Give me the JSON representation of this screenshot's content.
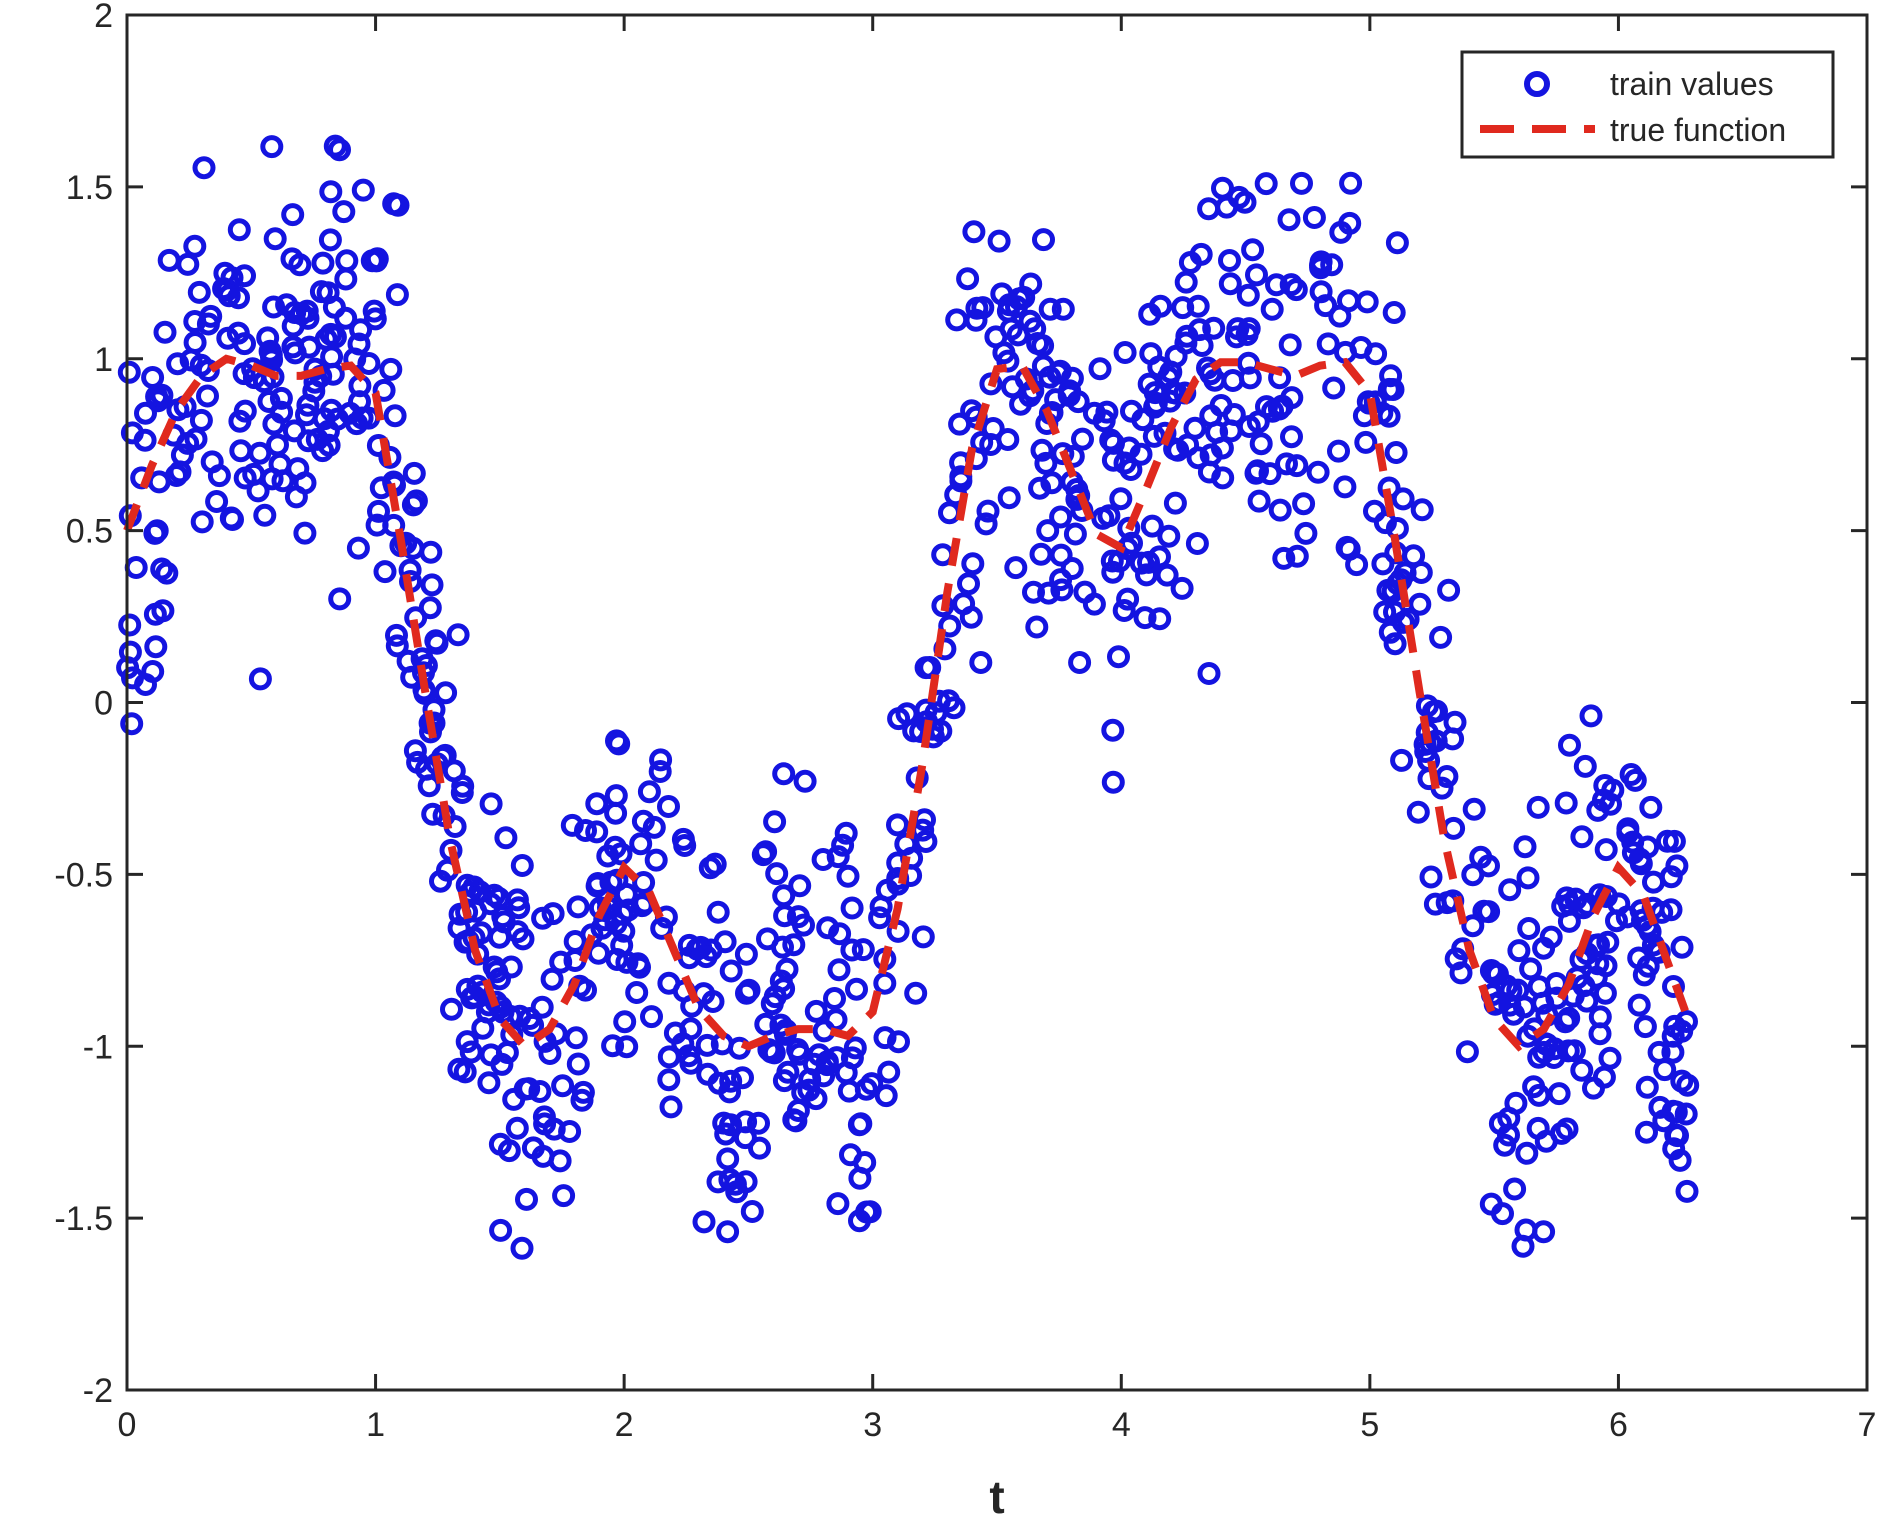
{
  "chart_data": {
    "type": "scatter",
    "title": "",
    "xlabel": "t",
    "ylabel": "",
    "xlim": [
      0,
      7
    ],
    "ylim": [
      -2,
      2
    ],
    "xticks": [
      0,
      1,
      2,
      3,
      4,
      5,
      6,
      7
    ],
    "yticks": [
      -2,
      -1.5,
      -1,
      -0.5,
      0,
      0.5,
      1,
      1.5,
      2
    ],
    "xtick_labels": [
      "0",
      "1",
      "2",
      "3",
      "4",
      "5",
      "6",
      "7"
    ],
    "ytick_labels": [
      "-2",
      "-1.5",
      "-1",
      "-0.5",
      "0",
      "0.5",
      "1",
      "1.5",
      "2"
    ],
    "grid": false,
    "legend_position": "top-right",
    "series": [
      {
        "name": "train values",
        "type": "scatter",
        "marker": "circle-open",
        "color": "#1414e0",
        "point_count": 1000,
        "x_range": [
          0,
          6.28
        ],
        "noise": "noisy samples scattered around the true function, roughly ±0.6"
      },
      {
        "name": "true function",
        "type": "line",
        "style": "dashed",
        "color": "#e0291e",
        "x": [
          0,
          0.1,
          0.2,
          0.3,
          0.4,
          0.5,
          0.6,
          0.7,
          0.8,
          0.9,
          1.0,
          1.1,
          1.2,
          1.3,
          1.4,
          1.5,
          1.6,
          1.7,
          1.8,
          1.9,
          2.0,
          2.1,
          2.2,
          2.3,
          2.4,
          2.5,
          2.6,
          2.7,
          2.8,
          2.9,
          3.0,
          3.1,
          3.2,
          3.3,
          3.4,
          3.5,
          3.6,
          3.7,
          3.8,
          3.9,
          4.0,
          4.1,
          4.2,
          4.3,
          4.4,
          4.5,
          4.6,
          4.7,
          4.8,
          4.9,
          5.0,
          5.1,
          5.2,
          5.3,
          5.4,
          5.5,
          5.6,
          5.7,
          5.8,
          5.9,
          6.0,
          6.1,
          6.2,
          6.28
        ],
        "y": [
          0.5,
          0.69,
          0.85,
          0.95,
          1.0,
          0.98,
          0.95,
          0.95,
          0.97,
          0.98,
          0.9,
          0.48,
          0.03,
          -0.4,
          -0.72,
          -0.92,
          -1.0,
          -0.95,
          -0.82,
          -0.62,
          -0.48,
          -0.55,
          -0.72,
          -0.89,
          -0.97,
          -1.0,
          -0.97,
          -0.95,
          -0.95,
          -0.97,
          -0.9,
          -0.6,
          -0.18,
          0.32,
          0.74,
          0.97,
          0.98,
          0.85,
          0.67,
          0.49,
          0.45,
          0.62,
          0.8,
          0.94,
          0.99,
          0.99,
          0.97,
          0.95,
          0.98,
          0.99,
          0.9,
          0.48,
          0.03,
          -0.4,
          -0.72,
          -0.92,
          -1.0,
          -0.95,
          -0.82,
          -0.62,
          -0.48,
          -0.56,
          -0.76,
          -0.92
        ]
      }
    ]
  }
}
